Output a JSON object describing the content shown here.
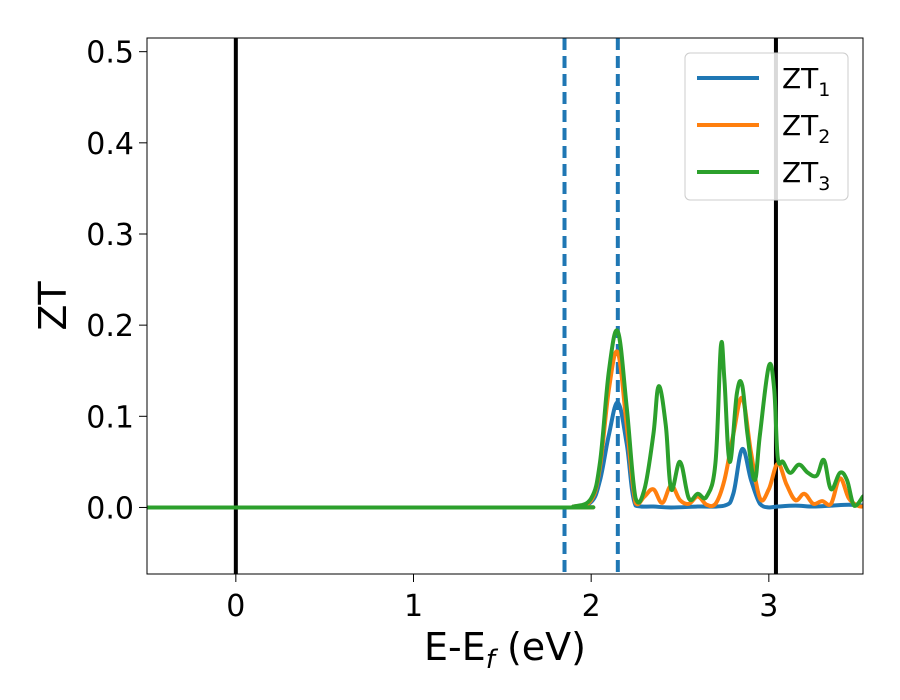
{
  "chart_data": {
    "type": "line",
    "title": "",
    "xlabel_main": "E-E",
    "xlabel_sub": "f",
    "xlabel_tail": " (eV)",
    "ylabel": "ZT",
    "xlim": [
      -0.5,
      3.53
    ],
    "ylim": [
      -0.073,
      0.515
    ],
    "xticks": [
      0,
      1,
      2,
      3
    ],
    "yticks": [
      0.0,
      0.1,
      0.2,
      0.3,
      0.4,
      0.5
    ],
    "xtick_labels": [
      "0",
      "1",
      "2",
      "3"
    ],
    "ytick_labels": [
      "0.0",
      "0.1",
      "0.2",
      "0.3",
      "0.4",
      "0.5"
    ],
    "grid": false,
    "legend_position": "top-right",
    "vlines": [
      {
        "x": 0.0,
        "color": "#000000",
        "style": "solid"
      },
      {
        "x": 1.85,
        "color": "#1f77b4",
        "style": "dashed"
      },
      {
        "x": 2.15,
        "color": "#1f77b4",
        "style": "dashed"
      },
      {
        "x": 3.04,
        "color": "#000000",
        "style": "solid"
      }
    ],
    "series": [
      {
        "name": "ZT",
        "subscript": "1",
        "color": "#1f77b4",
        "x": [
          -0.5,
          1.8,
          1.9,
          2.0,
          2.05,
          2.1,
          2.15,
          2.2,
          2.25,
          2.35,
          2.45,
          2.6,
          2.75,
          2.8,
          2.85,
          2.9,
          2.95,
          3.0,
          3.05,
          3.15,
          3.25,
          3.35,
          3.45,
          3.53
        ],
        "y": [
          0.0,
          0.0,
          0.001,
          0.006,
          0.03,
          0.08,
          0.115,
          0.07,
          0.002,
          0.001,
          0.0,
          0.001,
          0.002,
          0.015,
          0.064,
          0.03,
          0.004,
          0.0,
          0.001,
          0.002,
          0.001,
          0.002,
          0.003,
          0.002
        ]
      },
      {
        "name": "ZT",
        "subscript": "2",
        "color": "#ff7f0e",
        "x": [
          -0.5,
          1.8,
          1.9,
          2.0,
          2.05,
          2.1,
          2.15,
          2.2,
          2.25,
          2.3,
          2.35,
          2.4,
          2.45,
          2.5,
          2.55,
          2.6,
          2.65,
          2.7,
          2.75,
          2.8,
          2.85,
          2.9,
          2.95,
          3.0,
          3.05,
          3.1,
          3.15,
          3.2,
          3.25,
          3.3,
          3.35,
          3.4,
          3.45,
          3.5,
          3.53
        ],
        "y": [
          0.0,
          0.0,
          0.001,
          0.008,
          0.045,
          0.13,
          0.17,
          0.09,
          0.005,
          0.012,
          0.02,
          0.005,
          0.024,
          0.008,
          0.004,
          0.012,
          0.003,
          0.004,
          0.03,
          0.08,
          0.12,
          0.06,
          0.01,
          0.02,
          0.048,
          0.025,
          0.008,
          0.015,
          0.004,
          0.007,
          0.004,
          0.032,
          0.01,
          0.002,
          0.001
        ]
      },
      {
        "name": "ZT",
        "subscript": "3",
        "color": "#2ca02c",
        "x": [
          -0.5,
          1.8,
          1.9,
          2.0,
          2.05,
          2.1,
          2.15,
          2.2,
          2.25,
          2.3,
          2.35,
          2.38,
          2.42,
          2.45,
          2.5,
          2.55,
          2.6,
          2.65,
          2.7,
          2.73,
          2.75,
          2.78,
          2.82,
          2.85,
          2.88,
          2.92,
          2.95,
          3.0,
          3.03,
          3.05,
          3.08,
          3.12,
          3.17,
          3.22,
          3.27,
          3.31,
          3.35,
          3.4,
          3.44,
          3.48,
          3.53
        ],
        "y": [
          0.0,
          0.0,
          0.001,
          0.01,
          0.05,
          0.15,
          0.193,
          0.11,
          0.01,
          0.02,
          0.08,
          0.133,
          0.09,
          0.02,
          0.05,
          0.01,
          0.015,
          0.012,
          0.05,
          0.177,
          0.14,
          0.05,
          0.125,
          0.134,
          0.08,
          0.03,
          0.08,
          0.155,
          0.13,
          0.055,
          0.05,
          0.038,
          0.047,
          0.038,
          0.035,
          0.052,
          0.02,
          0.038,
          0.03,
          0.002,
          0.012
        ]
      }
    ]
  }
}
